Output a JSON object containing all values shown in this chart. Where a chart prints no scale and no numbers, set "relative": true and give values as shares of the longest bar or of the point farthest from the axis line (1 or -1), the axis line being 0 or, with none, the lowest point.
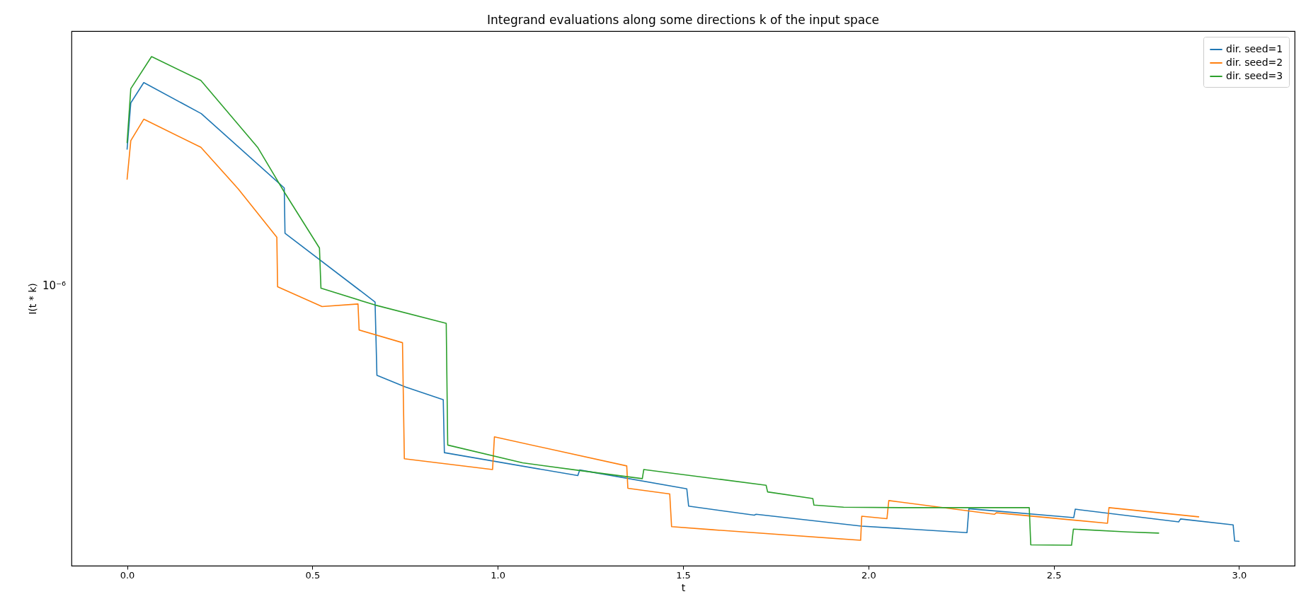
{
  "chart_data": {
    "type": "line",
    "title": "Integrand evaluations along some directions k of the input space",
    "xlabel": "t",
    "ylabel": "I(t * k)",
    "annotations": [
      "10⁻⁶"
    ],
    "relative": true,
    "grid": false,
    "legend": "top right",
    "line_style": "solid",
    "marker": "none",
    "xlim": [
      -0.15,
      3.15
    ],
    "xticks": [
      {
        "value": 0,
        "label": "0.0"
      },
      {
        "value": 0.5,
        "label": "0.5"
      },
      {
        "value": 1,
        "label": "1.0"
      },
      {
        "value": 1.5,
        "label": "1.5"
      },
      {
        "value": 2,
        "label": "2.0"
      },
      {
        "value": 2.5,
        "label": "2.5"
      },
      {
        "value": 3,
        "label": "3.0"
      }
    ],
    "series": [
      {
        "name": "dir. seed=1",
        "color": "#1f77b4",
        "x": [
          0,
          0.01,
          0.045,
          0.2,
          0.424,
          0.426,
          0.669,
          0.674,
          0.751,
          0.853,
          0.856,
          1.216,
          1.221,
          1.51,
          1.515,
          1.692,
          1.697,
          1.981,
          2.266,
          2.271,
          2.554,
          2.558,
          2.837,
          2.842,
          2.984,
          2.988,
          3.0
        ],
        "values": [
          0.818,
          0.909,
          0.949,
          0.888,
          0.742,
          0.653,
          0.518,
          0.374,
          0.351,
          0.326,
          0.222,
          0.177,
          0.188,
          0.151,
          0.117,
          0.0992,
          0.101,
          0.0778,
          0.0649,
          0.112,
          0.0945,
          0.111,
          0.086,
          0.0918,
          0.0803,
          0.0486,
          0.048
        ]
      },
      {
        "name": "dir. seed=2",
        "color": "#ff7f0e",
        "x": [
          0,
          0.01,
          0.045,
          0.199,
          0.3,
          0.404,
          0.406,
          0.526,
          0.623,
          0.626,
          0.743,
          0.748,
          0.986,
          0.991,
          1.348,
          1.351,
          1.464,
          1.469,
          1.58,
          1.979,
          1.982,
          2.05,
          2.055,
          2.34,
          2.345,
          2.645,
          2.649,
          2.891
        ],
        "values": [
          0.759,
          0.835,
          0.877,
          0.822,
          0.74,
          0.645,
          0.548,
          0.509,
          0.514,
          0.463,
          0.438,
          0.21,
          0.189,
          0.253,
          0.196,
          0.152,
          0.141,
          0.0767,
          0.0706,
          0.0499,
          0.0972,
          0.0924,
          0.128,
          0.101,
          0.104,
          0.0833,
          0.114,
          0.096
        ]
      },
      {
        "name": "dir. seed=3",
        "color": "#2ca02c",
        "x": [
          0,
          0.01,
          0.066,
          0.199,
          0.352,
          0.424,
          0.519,
          0.523,
          0.669,
          0.861,
          0.865,
          1.067,
          1.221,
          1.39,
          1.394,
          1.724,
          1.728,
          1.85,
          1.853,
          1.933,
          2.101,
          2.434,
          2.438,
          2.548,
          2.553,
          2.699,
          2.783
        ],
        "values": [
          0.831,
          0.937,
          1,
          0.953,
          0.822,
          0.734,
          0.624,
          0.545,
          0.512,
          0.476,
          0.237,
          0.202,
          0.187,
          0.171,
          0.189,
          0.158,
          0.145,
          0.132,
          0.119,
          0.115,
          0.114,
          0.114,
          0.041,
          0.0402,
          0.0719,
          0.0664,
          0.0641
        ]
      }
    ]
  }
}
